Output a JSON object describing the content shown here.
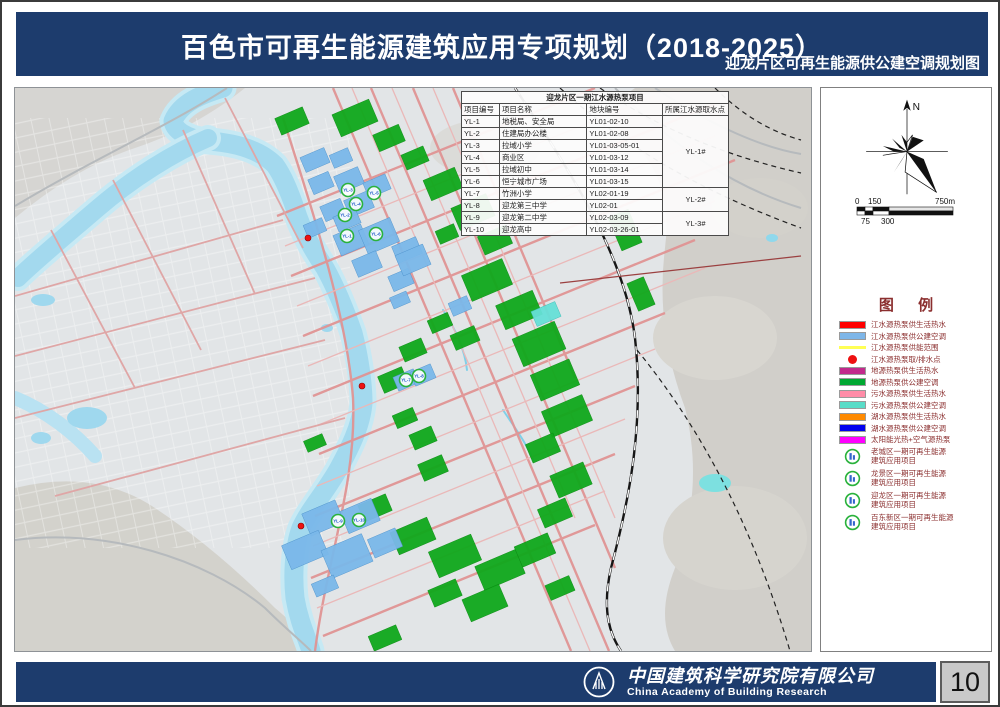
{
  "header": {
    "title": "百色市可再生能源建筑应用专项规划（2018-2025）",
    "subtitle": "迎龙片区可再生能源供公建空调规划图"
  },
  "project_table": {
    "title": "迎龙片区一期江水源热泵项目",
    "columns": [
      "项目编号",
      "项目名称",
      "地块编号",
      "所属江水源取水点"
    ],
    "rows": [
      [
        "YL-1",
        "地税局、安全局",
        "YL01-02-10"
      ],
      [
        "YL-2",
        "住建局办公楼",
        "YL01-02-08"
      ],
      [
        "YL-3",
        "拉域小学",
        "YL01-03-05-01"
      ],
      [
        "YL-4",
        "商业区",
        "YL01-03-12"
      ],
      [
        "YL-5",
        "拉域初中",
        "YL01-03-14"
      ],
      [
        "YL-6",
        "恒宁城市广场",
        "YL01-03-15"
      ],
      [
        "YL-7",
        "竹洲小学",
        "YL02-01-19"
      ],
      [
        "YL-8",
        "迎龙第三中学",
        "YL02-01"
      ],
      [
        "YL-9",
        "迎龙第二中学",
        "YL02-03-09"
      ],
      [
        "YL-10",
        "迎龙高中",
        "YL02-03-26-01"
      ]
    ],
    "intake_groups": [
      {
        "label": "YL-1#",
        "span": 6
      },
      {
        "label": "YL-2#",
        "span": 2
      },
      {
        "label": "YL-3#",
        "span": 2
      }
    ]
  },
  "map": {
    "markers": [
      {
        "label": "YL-1"
      },
      {
        "label": "YL-2"
      },
      {
        "label": "YL-3"
      },
      {
        "label": "YL-4"
      },
      {
        "label": "YL-5"
      },
      {
        "label": "YL-6"
      },
      {
        "label": "YL-7"
      },
      {
        "label": "YL-8"
      },
      {
        "label": "YL-9"
      },
      {
        "label": "YL-10"
      }
    ]
  },
  "compass": {
    "north_label": "N"
  },
  "scale": {
    "labels_top": [
      "0",
      "150",
      "750m"
    ],
    "labels_bottom": [
      "75",
      "300"
    ]
  },
  "legend": {
    "title": "图 例",
    "items": [
      {
        "type": "swatch",
        "color": "#FF0000",
        "label": "江水源热泵供生活热水"
      },
      {
        "type": "swatch",
        "color": "#7EB6E8",
        "label": "江水源热泵供公建空调"
      },
      {
        "type": "line",
        "color": "#FFFF55",
        "label": "江水源热泵供能范围"
      },
      {
        "type": "dot",
        "color": "#EE1111",
        "label": "江水源热泵取/排水点"
      },
      {
        "type": "swatch",
        "color": "#C22A8C",
        "label": "地源热泵供生活热水"
      },
      {
        "type": "swatch",
        "color": "#00A832",
        "label": "地源热泵供公建空调"
      },
      {
        "type": "swatch",
        "color": "#FF8CA8",
        "label": "污水源热泵供生活热水"
      },
      {
        "type": "swatch",
        "color": "#58DCC8",
        "label": "污水源热泵供公建空调"
      },
      {
        "type": "swatch",
        "color": "#FF8A00",
        "label": "湖水源热泵供生活热水"
      },
      {
        "type": "swatch",
        "color": "#0000EE",
        "label": "湖水源热泵供公建空调"
      },
      {
        "type": "swatch",
        "color": "#FF00FF",
        "label": "太阳能光热+空气源热泵"
      },
      {
        "type": "marker",
        "line1": "老城区一期可再生能源",
        "line2": "建筑应用项目"
      },
      {
        "type": "marker",
        "line1": "龙景区一期可再生能源",
        "line2": "建筑应用项目"
      },
      {
        "type": "marker",
        "line1": "迎龙区一期可再生能源",
        "line2": "建筑应用项目"
      },
      {
        "type": "marker",
        "line1": "百东新区一期可再生能源",
        "line2": "建筑应用项目"
      }
    ]
  },
  "footer": {
    "company_cn": "中国建筑科学研究院有限公司",
    "company_en": "China Academy of Building Research",
    "page_number": "10"
  },
  "colors": {
    "header_bg": "#1d3c6d",
    "river": "#a3d9ee",
    "parcel_green": "#10a81c",
    "parcel_blue": "#7ab8ea",
    "parcel_cyan": "#66e0d8",
    "marker_ring": "#2ab23c"
  }
}
